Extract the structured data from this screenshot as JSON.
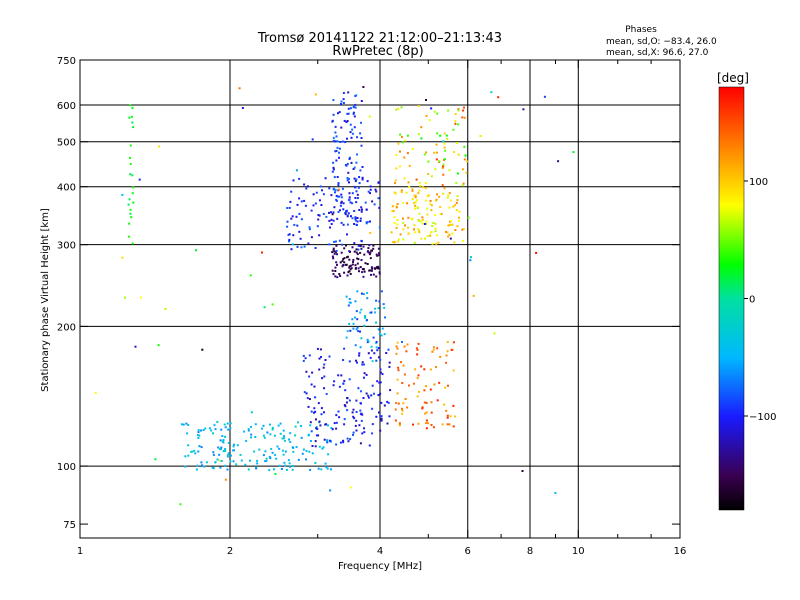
{
  "chart_data": {
    "type": "scatter",
    "title": "Tromsø 20141122 21:12:00–21:13:43",
    "subtitle": "RwPretec (8p)",
    "xlabel": "Frequency [MHz]",
    "ylabel": "Stationary phase Virtual Height [km]",
    "x_scale": "log",
    "y_scale": "log",
    "xlim": [
      1,
      16
    ],
    "ylim": [
      70,
      750
    ],
    "x_ticks": [
      1,
      2,
      4,
      6,
      8,
      10,
      16
    ],
    "x_minor_ticks": [
      3,
      5,
      7,
      9,
      12,
      14
    ],
    "x_gridlines": [
      2,
      4,
      6,
      8,
      10
    ],
    "y_ticks": [
      75,
      100,
      200,
      300,
      400,
      500,
      600,
      750
    ],
    "y_gridlines": [
      100,
      200,
      300,
      400,
      500,
      600
    ],
    "grid": true,
    "phases_header": "Phases",
    "phase_stats": [
      "mean, sd,O: −83.4, 26.0",
      "mean, sd,X:  96.6, 27.0"
    ],
    "colorbar": {
      "label": "[deg]",
      "range": [
        -180,
        180
      ],
      "ticks": [
        100,
        0,
        -100
      ],
      "colormap": "rainbow"
    },
    "clusters": [
      {
        "name": "F-trace O (dark)",
        "f": [
          3.2,
          4.0
        ],
        "h": [
          255,
          300
        ],
        "n": 110,
        "phase": [
          -170,
          -130
        ]
      },
      {
        "name": "F-trace O (blue)",
        "f": [
          2.6,
          4.0
        ],
        "h": [
          290,
          420
        ],
        "n": 130,
        "phase": [
          -120,
          -70
        ]
      },
      {
        "name": "F-trace O spike",
        "f": [
          3.2,
          3.7
        ],
        "h": [
          330,
          640
        ],
        "n": 130,
        "phase": [
          -120,
          -70
        ]
      },
      {
        "name": "F-trace X (yellow)",
        "f": [
          4.2,
          5.9
        ],
        "h": [
          300,
          410
        ],
        "n": 140,
        "phase": [
          60,
          130
        ]
      },
      {
        "name": "F-trace X scatter",
        "f": [
          4.3,
          6.0
        ],
        "h": [
          400,
          600
        ],
        "n": 80,
        "phase": [
          20,
          160
        ]
      },
      {
        "name": "E/Es trace (cyan)",
        "f": [
          1.6,
          3.2
        ],
        "h": [
          98,
          125
        ],
        "n": 190,
        "phase": [
          -70,
          -20
        ]
      },
      {
        "name": "E/Es trace (blue)",
        "f": [
          2.8,
          4.2
        ],
        "h": [
          110,
          180
        ],
        "n": 170,
        "phase": [
          -130,
          -80
        ]
      },
      {
        "name": "Ex trace (orange)",
        "f": [
          4.3,
          5.7
        ],
        "h": [
          120,
          185
        ],
        "n": 90,
        "phase": [
          100,
          170
        ]
      },
      {
        "name": "Lower rise (mixed)",
        "f": [
          3.4,
          4.1
        ],
        "h": [
          180,
          240
        ],
        "n": 60,
        "phase": [
          -100,
          -20
        ]
      },
      {
        "name": "Low-frequency column (green)",
        "f": [
          1.25,
          1.28
        ],
        "h": [
          280,
          600
        ],
        "n": 22,
        "phase": [
          10,
          35
        ]
      },
      {
        "name": "Sparse noise",
        "f": [
          1.0,
          10.0
        ],
        "h": [
          75,
          700
        ],
        "n": 60,
        "phase": [
          -180,
          180
        ]
      }
    ]
  }
}
